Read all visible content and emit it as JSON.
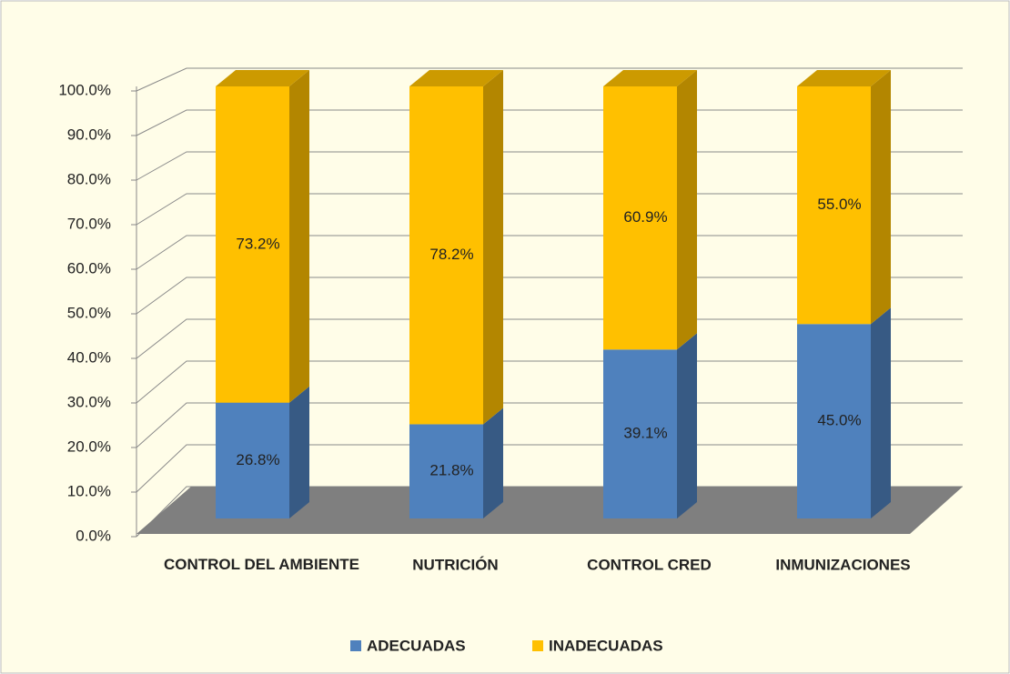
{
  "chart_data": {
    "type": "bar3d_stacked",
    "categories": [
      "CONTROL DEL AMBIENTE",
      "NUTRICIÓN",
      "CONTROL CRED",
      "INMUNIZACIONES"
    ],
    "series": [
      {
        "name": "ADECUADAS",
        "color": "#4f81bd",
        "values": [
          26.8,
          21.8,
          39.1,
          45.0
        ],
        "value_labels": [
          "26.8%",
          "21.8%",
          "39.1%",
          "45.0%"
        ]
      },
      {
        "name": "INADECUADAS",
        "color": "#ffc000",
        "values": [
          73.2,
          78.2,
          60.9,
          55.0
        ],
        "value_labels": [
          "73.2%",
          "78.2%",
          "60.9%",
          "55.0%"
        ]
      }
    ],
    "ylim": [
      0,
      100
    ],
    "yticks": [
      {
        "value": 0,
        "label": "0.0%"
      },
      {
        "value": 10,
        "label": "10.0%"
      },
      {
        "value": 20,
        "label": "20.0%"
      },
      {
        "value": 30,
        "label": "30.0%"
      },
      {
        "value": 40,
        "label": "40.0%"
      },
      {
        "value": 50,
        "label": "50.0%"
      },
      {
        "value": 60,
        "label": "60.0%"
      },
      {
        "value": 70,
        "label": "70.0%"
      },
      {
        "value": 80,
        "label": "80.0%"
      },
      {
        "value": 90,
        "label": "90.0%"
      },
      {
        "value": 100,
        "label": "100.0%"
      }
    ],
    "grid": true,
    "legend": "bottom"
  }
}
